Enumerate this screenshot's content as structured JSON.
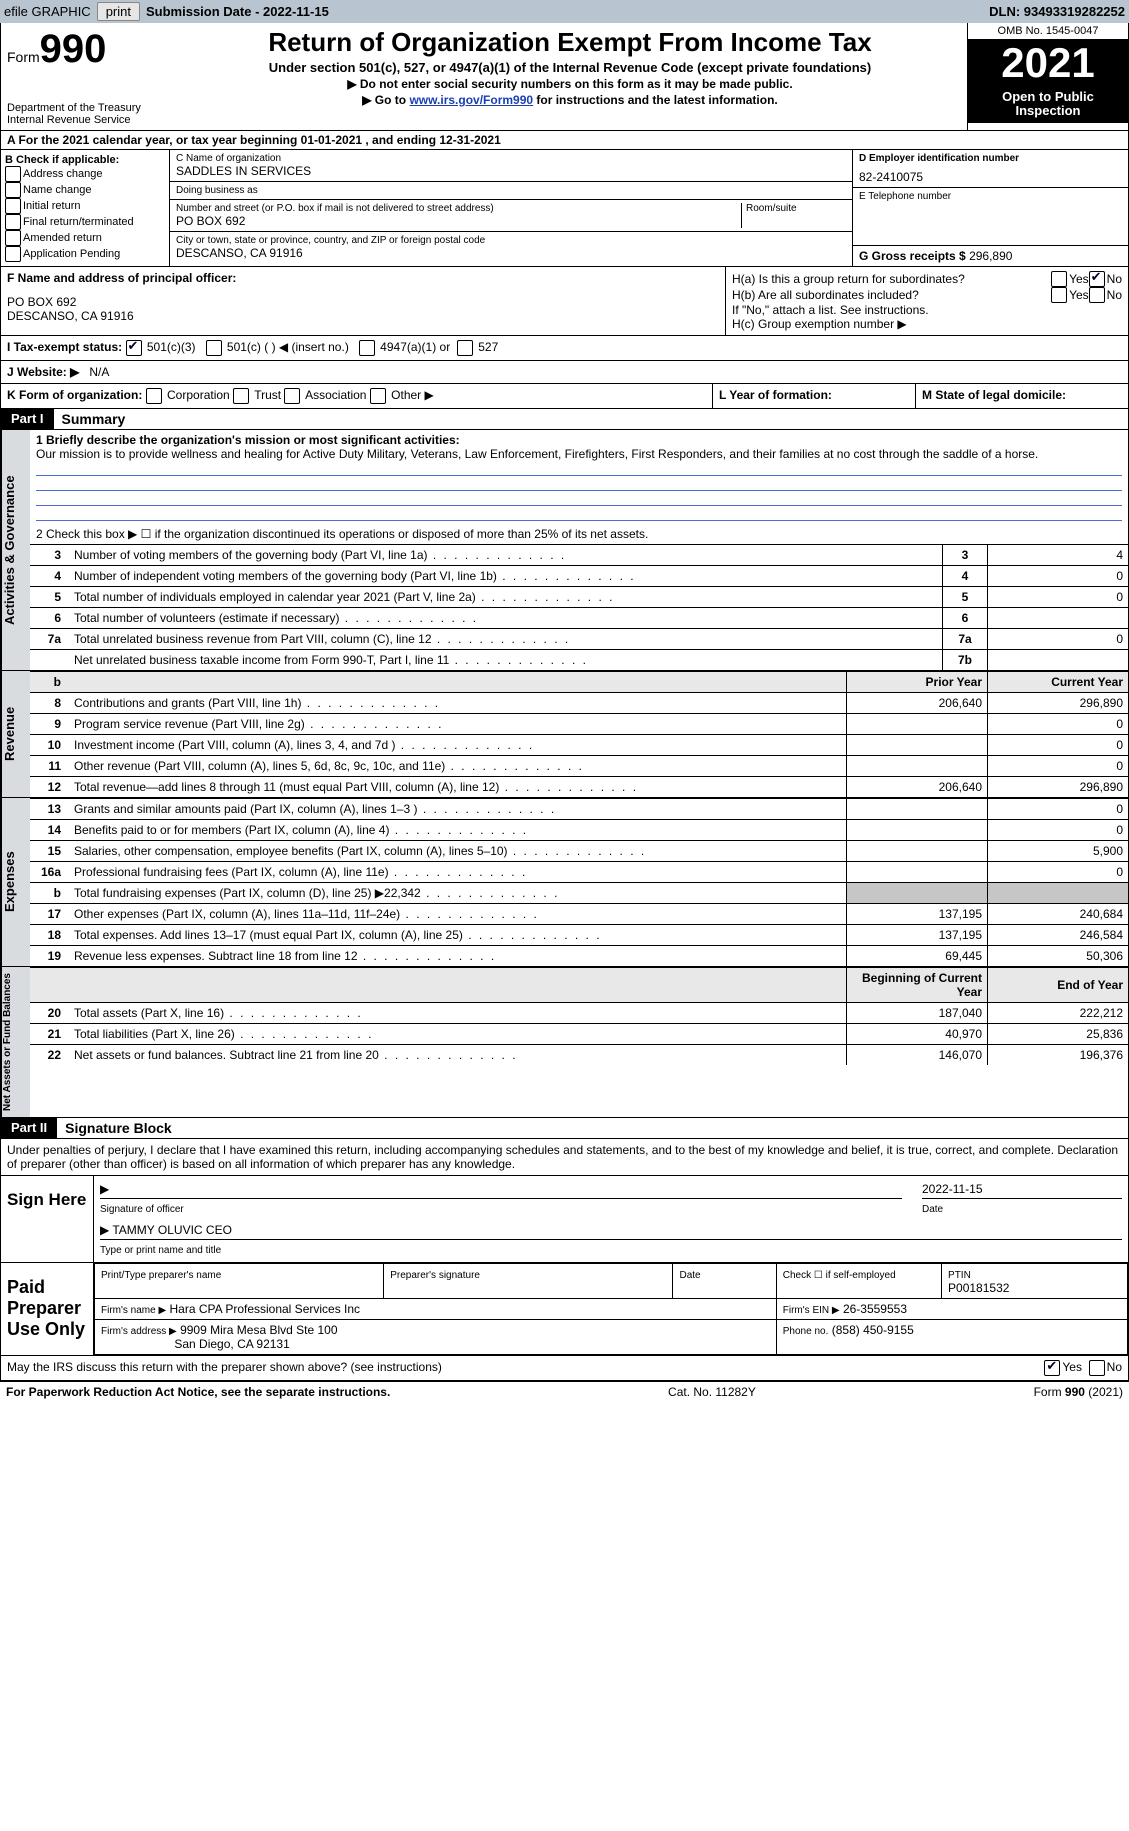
{
  "top_bar": {
    "efile_label": "efile GRAPHIC",
    "print_btn": "print",
    "submission": "Submission Date - 2022-11-15",
    "dln": "DLN: 93493319282252"
  },
  "header": {
    "form_word": "Form",
    "form_no": "990",
    "dept": "Department of the Treasury",
    "irs": "Internal Revenue Service",
    "title": "Return of Organization Exempt From Income Tax",
    "subtitle": "Under section 501(c), 527, or 4947(a)(1) of the Internal Revenue Code (except private foundations)",
    "note1": "▶ Do not enter social security numbers on this form as it may be made public.",
    "note2_pre": "▶ Go to ",
    "note2_link": "www.irs.gov/Form990",
    "note2_post": " for instructions and the latest information.",
    "omb": "OMB No. 1545-0047",
    "year": "2021",
    "open": "Open to Public Inspection"
  },
  "line_a": "A  For the 2021 calendar year, or tax year beginning 01-01-2021    , and ending 12-31-2021",
  "col_b": {
    "head": "B Check if applicable:",
    "opts": [
      "Address change",
      "Name change",
      "Initial return",
      "Final return/terminated",
      "Amended return",
      "Application Pending"
    ]
  },
  "col_c": {
    "name_lbl": "C Name of organization",
    "name_val": "SADDLES IN SERVICES",
    "dba_lbl": "Doing business as",
    "addr_lbl": "Number and street (or P.O. box if mail is not delivered to street address)",
    "room_lbl": "Room/suite",
    "addr_val": "PO BOX 692",
    "city_lbl": "City or town, state or province, country, and ZIP or foreign postal code",
    "city_val": "DESCANSO, CA  91916",
    "f_lbl": "F Name and address of principal officer:",
    "f_addr1": "PO BOX 692",
    "f_addr2": "DESCANSO, CA  91916"
  },
  "col_d": {
    "ein_lbl": "D Employer identification number",
    "ein_val": "82-2410075",
    "phone_lbl": "E Telephone number",
    "gross_lbl": "G Gross receipts $",
    "gross_val": "296,890"
  },
  "h": {
    "ha": "H(a)  Is this a group return for subordinates?",
    "hb": "H(b)  Are all subordinates included?",
    "hb_note": "If \"No,\" attach a list. See instructions.",
    "hc": "H(c)  Group exemption number ▶",
    "yes": "Yes",
    "no": "No"
  },
  "row_i": {
    "i_lbl": "I    Tax-exempt status:",
    "i_a": "501(c)(3)",
    "i_b": "501(c) (  ) ◀ (insert no.)",
    "i_c": "4947(a)(1) or",
    "i_d": "527"
  },
  "row_j": {
    "lbl": "J    Website: ▶",
    "val": "N/A"
  },
  "row_k": {
    "lbl": "K Form of organization:",
    "opts": [
      "Corporation",
      "Trust",
      "Association",
      "Other ▶"
    ]
  },
  "row_l": "L Year of formation:",
  "row_m": "M State of legal domicile:",
  "part1": {
    "hdr": "Part I",
    "title": "Summary"
  },
  "summary": {
    "tab1": "Activities & Governance",
    "q1_lbl": "1   Briefly describe the organization's mission or most significant activities:",
    "q1_val": "Our mission is to provide wellness and healing for Active Duty Military, Veterans, Law Enforcement, Firefighters, First Responders, and their families at no cost through the saddle of a horse.",
    "q2": "2    Check this box ▶ ☐  if the organization discontinued its operations or disposed of more than 25% of its net assets.",
    "rows_a": [
      {
        "n": "3",
        "t": "Number of voting members of the governing body (Part VI, line 1a)",
        "bx": "3",
        "v": "4"
      },
      {
        "n": "4",
        "t": "Number of independent voting members of the governing body (Part VI, line 1b)",
        "bx": "4",
        "v": "0"
      },
      {
        "n": "5",
        "t": "Total number of individuals employed in calendar year 2021 (Part V, line 2a)",
        "bx": "5",
        "v": "0"
      },
      {
        "n": "6",
        "t": "Total number of volunteers (estimate if necessary)",
        "bx": "6",
        "v": ""
      },
      {
        "n": "7a",
        "t": "Total unrelated business revenue from Part VIII, column (C), line 12",
        "bx": "7a",
        "v": "0"
      },
      {
        "n": "",
        "t": "Net unrelated business taxable income from Form 990-T, Part I, line 11",
        "bx": "7b",
        "v": ""
      }
    ],
    "tab2": "Revenue",
    "col_prior": "Prior Year",
    "col_curr": "Current Year",
    "rows_r": [
      {
        "n": "8",
        "t": "Contributions and grants (Part VIII, line 1h)",
        "p": "206,640",
        "c": "296,890"
      },
      {
        "n": "9",
        "t": "Program service revenue (Part VIII, line 2g)",
        "p": "",
        "c": "0"
      },
      {
        "n": "10",
        "t": "Investment income (Part VIII, column (A), lines 3, 4, and 7d )",
        "p": "",
        "c": "0"
      },
      {
        "n": "11",
        "t": "Other revenue (Part VIII, column (A), lines 5, 6d, 8c, 9c, 10c, and 11e)",
        "p": "",
        "c": "0"
      },
      {
        "n": "12",
        "t": "Total revenue—add lines 8 through 11 (must equal Part VIII, column (A), line 12)",
        "p": "206,640",
        "c": "296,890"
      }
    ],
    "tab3": "Expenses",
    "rows_e": [
      {
        "n": "13",
        "t": "Grants and similar amounts paid (Part IX, column (A), lines 1–3 )",
        "p": "",
        "c": "0"
      },
      {
        "n": "14",
        "t": "Benefits paid to or for members (Part IX, column (A), line 4)",
        "p": "",
        "c": "0"
      },
      {
        "n": "15",
        "t": "Salaries, other compensation, employee benefits (Part IX, column (A), lines 5–10)",
        "p": "",
        "c": "5,900"
      },
      {
        "n": "16a",
        "t": "Professional fundraising fees (Part IX, column (A), line 11e)",
        "p": "",
        "c": "0"
      },
      {
        "n": "b",
        "t": "Total fundraising expenses (Part IX, column (D), line 25) ▶22,342",
        "p": "shade",
        "c": "shade"
      },
      {
        "n": "17",
        "t": "Other expenses (Part IX, column (A), lines 11a–11d, 11f–24e)",
        "p": "137,195",
        "c": "240,684"
      },
      {
        "n": "18",
        "t": "Total expenses. Add lines 13–17 (must equal Part IX, column (A), line 25)",
        "p": "137,195",
        "c": "246,584"
      },
      {
        "n": "19",
        "t": "Revenue less expenses. Subtract line 18 from line 12",
        "p": "69,445",
        "c": "50,306"
      }
    ],
    "tab4": "Net Assets or Fund Balances",
    "col_begin": "Beginning of Current Year",
    "col_end": "End of Year",
    "rows_n": [
      {
        "n": "20",
        "t": "Total assets (Part X, line 16)",
        "p": "187,040",
        "c": "222,212"
      },
      {
        "n": "21",
        "t": "Total liabilities (Part X, line 26)",
        "p": "40,970",
        "c": "25,836"
      },
      {
        "n": "22",
        "t": "Net assets or fund balances. Subtract line 21 from line 20",
        "p": "146,070",
        "c": "196,376"
      }
    ]
  },
  "part2": {
    "hdr": "Part II",
    "title": "Signature Block"
  },
  "sig": {
    "decl": "Under penalties of perjury, I declare that I have examined this return, including accompanying schedules and statements, and to the best of my knowledge and belief, it is true, correct, and complete. Declaration of preparer (other than officer) is based on all information of which preparer has any knowledge.",
    "sign_here": "Sign Here",
    "sig_officer": "Signature of officer",
    "date": "Date",
    "date_val": "2022-11-15",
    "typed": "TAMMY OLUVIC  CEO",
    "typed_lbl": "Type or print name and title",
    "paid": "Paid Preparer Use Only",
    "pp_name": "Print/Type preparer's name",
    "pp_sig": "Preparer's signature",
    "pp_date": "Date",
    "pp_self": "Check ☐ if self-employed",
    "ptin_lbl": "PTIN",
    "ptin_val": "P00181532",
    "firm_lbl": "Firm's name    ▶",
    "firm_val": "Hara CPA Professional Services Inc",
    "ein_lbl": "Firm's EIN ▶",
    "ein_val": "26-3559553",
    "addr_lbl": "Firm's address ▶",
    "addr_val1": "9909 Mira Mesa Blvd Ste 100",
    "addr_val2": "San Diego, CA  92131",
    "ph_lbl": "Phone no.",
    "ph_val": "(858) 450-9155",
    "discuss": "May the IRS discuss this return with the preparer shown above? (see instructions)"
  },
  "footer": {
    "left": "For Paperwork Reduction Act Notice, see the separate instructions.",
    "mid": "Cat. No. 11282Y",
    "right": "Form 990 (2021)"
  },
  "colors": {
    "topbar": "#b8c5d0",
    "blue_line": "#4a6fd4",
    "tab_bg": "#d8dbe0"
  }
}
